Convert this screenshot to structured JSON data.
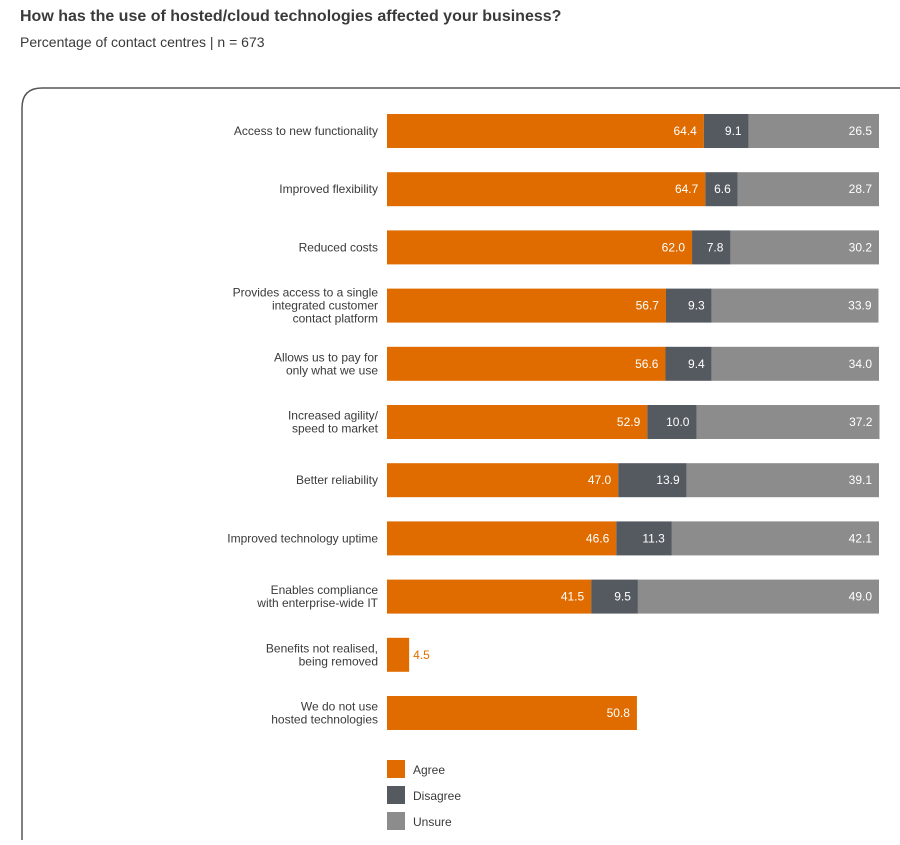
{
  "title": "How has the use of hosted/cloud technologies affected your business?",
  "subtitle": "Percentage of contact centres | n = 673",
  "chart_data": {
    "type": "bar",
    "orientation": "horizontal",
    "stacked": true,
    "xlim": [
      0,
      100
    ],
    "grid": false,
    "legend_position": "bottom",
    "categories": [
      [
        "Access to new functionality"
      ],
      [
        "Improved flexibility"
      ],
      [
        "Reduced costs"
      ],
      [
        "Provides access to a single",
        "integrated customer",
        "contact platform"
      ],
      [
        "Allows us to pay for",
        "only what we use"
      ],
      [
        "Increased agility/",
        "speed to market"
      ],
      [
        "Better reliability"
      ],
      [
        "Improved technology uptime"
      ],
      [
        "Enables compliance",
        "with enterprise-wide IT"
      ],
      [
        "Benefits not realised,",
        "being removed"
      ],
      [
        "We do not use",
        "hosted technologies"
      ]
    ],
    "series": [
      {
        "name": "Agree",
        "color": "#e06c00",
        "values": [
          64.4,
          64.7,
          62.0,
          56.7,
          56.6,
          52.9,
          47.0,
          46.6,
          41.5,
          4.5,
          50.8
        ]
      },
      {
        "name": "Disagree",
        "color": "#555a60",
        "values": [
          9.1,
          6.6,
          7.8,
          9.3,
          9.4,
          10.0,
          13.9,
          11.3,
          9.5,
          null,
          null
        ]
      },
      {
        "name": "Unsure",
        "color": "#8c8c8c",
        "values": [
          26.5,
          28.7,
          30.2,
          33.9,
          34.0,
          37.2,
          39.1,
          42.1,
          49.0,
          null,
          null
        ]
      }
    ]
  }
}
